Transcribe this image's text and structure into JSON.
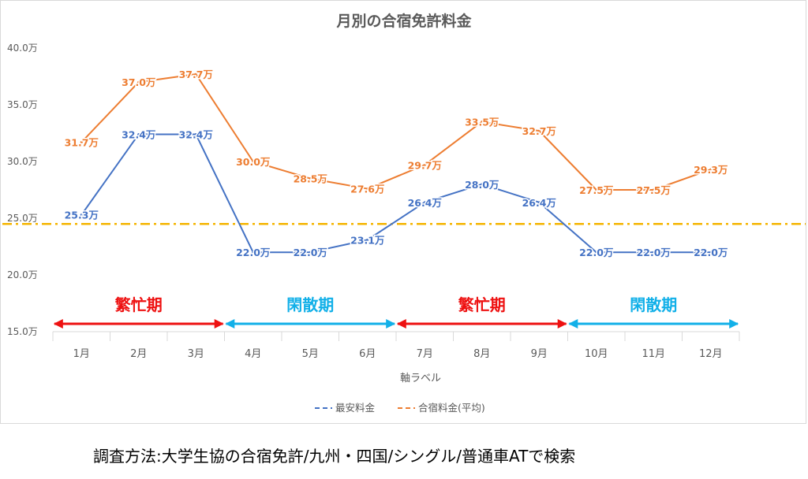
{
  "chart_data": {
    "type": "line",
    "title": "月別の合宿免許料金",
    "xlabel": "軸ラベル",
    "ylabel": "",
    "categories": [
      "1月",
      "2月",
      "3月",
      "4月",
      "5月",
      "6月",
      "7月",
      "8月",
      "9月",
      "10月",
      "11月",
      "12月"
    ],
    "ylim": [
      15.0,
      40.0
    ],
    "yticks": [
      "15.0万",
      "20.0万",
      "25.0万",
      "30.0万",
      "35.0万",
      "40.0万"
    ],
    "series": [
      {
        "name": "最安料金",
        "color": "#4472c4",
        "values": [
          25.3,
          32.4,
          32.4,
          22.0,
          22.0,
          23.1,
          26.4,
          28.0,
          26.4,
          22.0,
          22.0,
          22.0
        ],
        "labels": [
          "25.3万",
          "32.4万",
          "32.4万",
          "22.0万",
          "22.0万",
          "23.1万",
          "26.4万",
          "28.0万",
          "26.4万",
          "22.0万",
          "22.0万",
          "22.0万"
        ]
      },
      {
        "name": "合宿料金(平均)",
        "color": "#ed7d31",
        "values": [
          31.7,
          37.0,
          37.7,
          30.0,
          28.5,
          27.6,
          29.7,
          33.5,
          32.7,
          27.5,
          27.5,
          29.3
        ],
        "labels": [
          "31.7万",
          "37.0万",
          "37.7万",
          "30.0万",
          "28.5万",
          "27.6万",
          "29.7万",
          "33.5万",
          "32.7万",
          "27.5万",
          "27.5万",
          "29.3万"
        ]
      }
    ],
    "reference_line": {
      "value": 24.5,
      "color": "#f4b400"
    },
    "annotations": [
      {
        "text": "繁忙期",
        "start": 1,
        "end": 3,
        "color": "#ee1111"
      },
      {
        "text": "閑散期",
        "start": 4,
        "end": 6,
        "color": "#12b0e8"
      },
      {
        "text": "繁忙期",
        "start": 7,
        "end": 9,
        "color": "#ee1111"
      },
      {
        "text": "閑散期",
        "start": 10,
        "end": 12,
        "color": "#12b0e8"
      }
    ],
    "legend_position": "bottom",
    "grid": false
  },
  "footer": {
    "note": "調査方法:大学生協の合宿免許/九州・四国/シングル/普通車ATで検索"
  }
}
